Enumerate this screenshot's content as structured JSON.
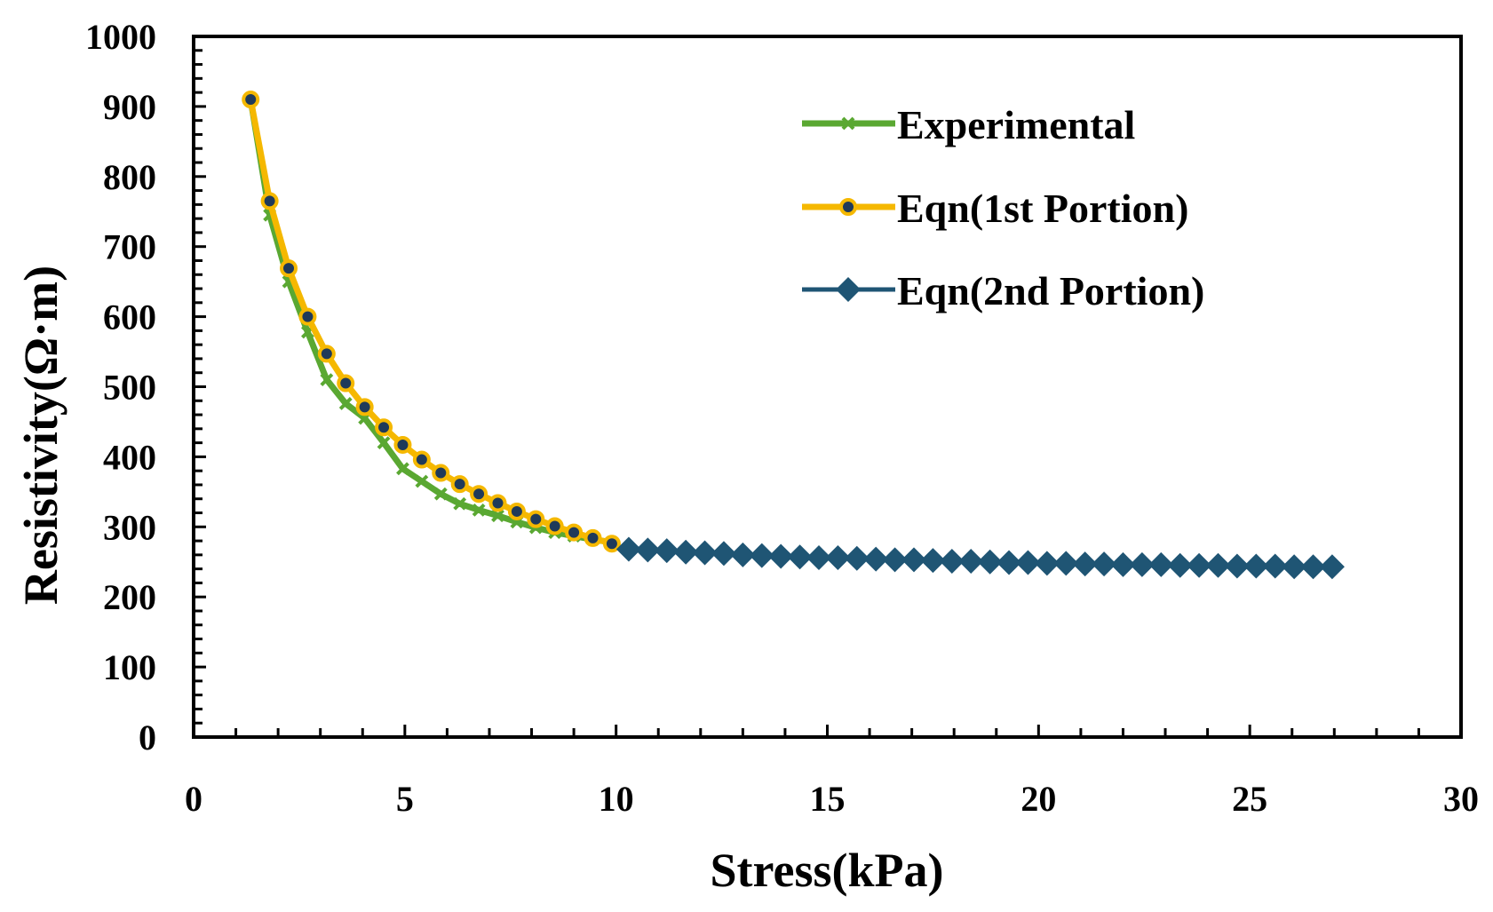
{
  "chart_data": {
    "type": "line",
    "title": "",
    "xlabel": "Stress(kPa)",
    "ylabel": "Resistivity(Ω·m)",
    "xlim": [
      0,
      30
    ],
    "ylim": [
      0,
      1000
    ],
    "x_ticks": [
      "0",
      "5",
      "10",
      "15",
      "20",
      "25",
      "30"
    ],
    "y_ticks": [
      "0",
      "100",
      "200",
      "300",
      "400",
      "500",
      "600",
      "700",
      "800",
      "900",
      "1000"
    ],
    "legend_position": "top-right",
    "series": [
      {
        "name": "Experimental",
        "marker": "x",
        "color": "#5aa832",
        "x": [
          1.35,
          1.8,
          2.25,
          2.7,
          3.15,
          3.6,
          4.05,
          4.5,
          4.95,
          5.4,
          5.85,
          6.3,
          6.75,
          7.2,
          7.65,
          8.1,
          8.55,
          9.0,
          9.45,
          9.9
        ],
        "y": [
          910,
          745,
          650,
          578,
          510,
          476,
          455,
          420,
          383,
          365,
          347,
          333,
          324,
          316,
          307,
          299,
          292,
          287,
          282,
          278
        ]
      },
      {
        "name": "Eqn(1st Portion)",
        "marker": "circle",
        "color": "#f5b800",
        "x": [
          1.35,
          1.8,
          2.25,
          2.7,
          3.15,
          3.6,
          4.05,
          4.5,
          4.95,
          5.4,
          5.85,
          6.3,
          6.75,
          7.2,
          7.65,
          8.1,
          8.55,
          9.0,
          9.45,
          9.9
        ],
        "y": [
          910,
          765,
          669,
          600,
          547,
          505,
          471,
          442,
          417,
          396,
          377,
          361,
          347,
          334,
          322,
          311,
          301,
          292,
          284,
          276
        ]
      },
      {
        "name": "Eqn(2nd Portion)",
        "marker": "diamond",
        "color": "#1f5574",
        "x": [
          10.3,
          10.75,
          11.2,
          11.65,
          12.1,
          12.55,
          13.0,
          13.45,
          13.9,
          14.35,
          14.8,
          15.25,
          15.7,
          16.15,
          16.6,
          17.05,
          17.5,
          17.95,
          18.4,
          18.85,
          19.3,
          19.75,
          20.2,
          20.65,
          21.1,
          21.55,
          22.0,
          22.45,
          22.9,
          23.35,
          23.8,
          24.25,
          24.7,
          25.15,
          25.6,
          26.05,
          26.5,
          26.95
        ],
        "y": [
          268,
          267,
          266,
          264,
          263,
          262,
          260,
          259,
          258,
          257,
          256,
          256,
          255,
          254,
          253,
          253,
          252,
          251,
          251,
          250,
          249,
          249,
          248,
          248,
          247,
          247,
          246,
          246,
          246,
          245,
          245,
          245,
          244,
          244,
          244,
          243,
          243,
          243
        ]
      }
    ]
  }
}
